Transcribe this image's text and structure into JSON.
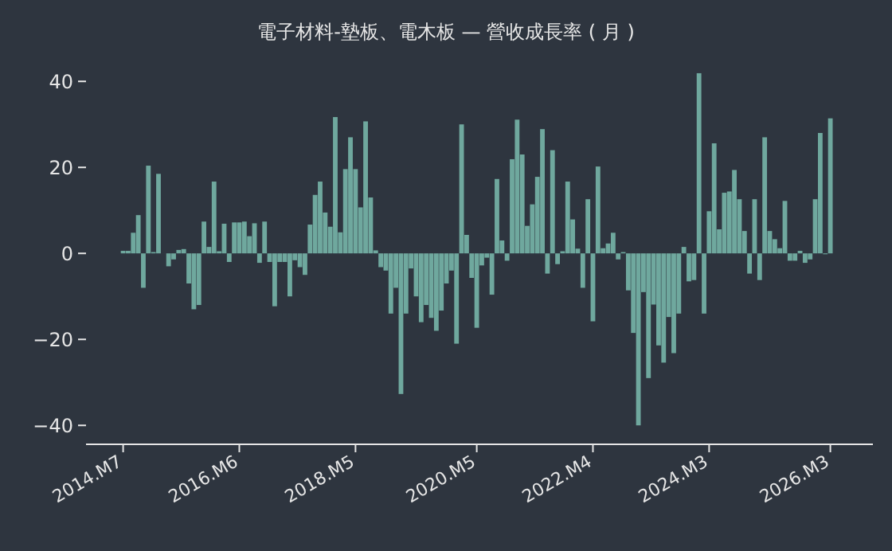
{
  "chart_data": {
    "type": "bar",
    "title": "電子材料-墊板、電木板 — 營收成長率 ( 月 )",
    "categories": [
      "2014.M7",
      null,
      null,
      null,
      null,
      null,
      null,
      null,
      null,
      null,
      null,
      null,
      null,
      null,
      null,
      null,
      null,
      null,
      null,
      null,
      null,
      null,
      null,
      "2016.M6",
      null,
      null,
      null,
      null,
      null,
      null,
      null,
      null,
      null,
      null,
      null,
      null,
      null,
      null,
      null,
      null,
      null,
      null,
      null,
      null,
      null,
      null,
      "2018.M5",
      null,
      null,
      null,
      null,
      null,
      null,
      null,
      null,
      null,
      null,
      null,
      null,
      null,
      null,
      null,
      null,
      null,
      null,
      null,
      null,
      null,
      null,
      null,
      "2020.M5",
      null,
      null,
      null,
      null,
      null,
      null,
      null,
      null,
      null,
      null,
      null,
      null,
      null,
      null,
      null,
      null,
      null,
      null,
      null,
      null,
      null,
      null,
      "2022.M4",
      null,
      null,
      null,
      null,
      null,
      null,
      null,
      null,
      null,
      null,
      null,
      null,
      null,
      null,
      null,
      null,
      null,
      null,
      null,
      null,
      null,
      null,
      "2024.M3",
      null,
      null,
      null,
      null,
      null,
      null,
      null,
      null,
      null,
      null,
      null,
      null,
      null,
      null,
      null,
      null,
      null,
      null,
      null,
      null,
      null,
      null,
      null,
      "2026.M3"
    ],
    "values": [
      0.6,
      0.6,
      4.8,
      8.9,
      -8,
      20.4,
      0.3,
      18.5,
      0,
      -3,
      -1.4,
      0.8,
      1,
      -7,
      -13,
      -12,
      7.4,
      1.5,
      16.7,
      0.5,
      6.9,
      -2,
      7.2,
      7.2,
      7.4,
      4,
      7,
      -2.2,
      7.4,
      -2,
      -12.3,
      -2,
      -2,
      -10,
      -1.6,
      -3.2,
      -5,
      6.7,
      13.6,
      16.7,
      9.5,
      6.2,
      31.7,
      4.9,
      19.6,
      27,
      19.6,
      10.7,
      30.7,
      13,
      0.7,
      -3.2,
      -4,
      -14,
      -8,
      -32.7,
      -14,
      -3.5,
      -10,
      -16,
      -12,
      -15,
      -18,
      -13.3,
      -7,
      -4,
      -21,
      30,
      4.3,
      -5.7,
      -17.3,
      -2.8,
      -1,
      -9.6,
      17.3,
      3,
      -1.7,
      21.9,
      31.1,
      23,
      6.4,
      11.4,
      17.8,
      28.9,
      -4.7,
      24,
      -2.5,
      0.5,
      16.7,
      7.9,
      1.1,
      -8,
      12.6,
      -15.8,
      20.2,
      1.2,
      2.3,
      4.8,
      -1.4,
      0.3,
      -8.6,
      -18.5,
      -40,
      -9,
      -29,
      -11.9,
      -21.4,
      -25.4,
      -14.8,
      -23.2,
      -14,
      1.5,
      -6.5,
      -6.2,
      41.9,
      -14,
      9.8,
      25.6,
      5.6,
      14.1,
      14.4,
      19.4,
      12.6,
      5.2,
      -4.7,
      12.6,
      -6.2,
      27,
      5.2,
      3.3,
      1.2,
      12.2,
      -1.7,
      -1.7,
      0.6,
      -2.2,
      -1.4,
      12.6,
      28,
      -0.2,
      31.4
    ],
    "color": "#6fa89e",
    "ylim": [
      -44.4,
      42
    ],
    "yticks": [
      -40,
      -20,
      0,
      20,
      40
    ],
    "grid": false
  }
}
